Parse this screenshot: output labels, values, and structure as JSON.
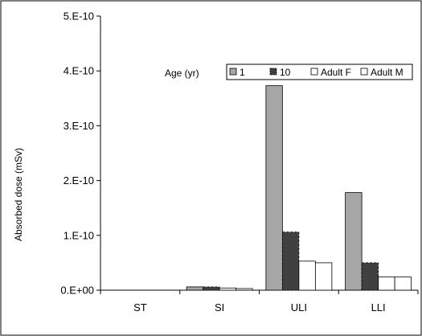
{
  "chart_data": {
    "type": "bar",
    "title": "",
    "xlabel": "",
    "ylabel": "Absorbed dose (mSv)",
    "categories": [
      "ST",
      "SI",
      "ULI",
      "LLI"
    ],
    "y_ticks": [
      "0.E+00",
      "1.E-10",
      "2.E-10",
      "3.E-10",
      "4.E-10",
      "5.E-10"
    ],
    "ylim": [
      0,
      5e-10
    ],
    "legend_title": "Age (yr)",
    "legend_position": "top-right",
    "grid": false,
    "series": [
      {
        "name": "1",
        "color": "#a6a6a6",
        "edge": "#000000",
        "dashed": false,
        "values": [
          0,
          6e-12,
          3.73e-10,
          1.78e-10
        ]
      },
      {
        "name": "10",
        "color": "#404040",
        "edge": "#000000",
        "dashed": true,
        "values": [
          0,
          6e-12,
          1.06e-10,
          5e-11
        ]
      },
      {
        "name": "Adult F",
        "color": "#ffffff",
        "edge": "#000000",
        "dashed": false,
        "values": [
          0,
          4e-12,
          5.3e-11,
          2.4e-11
        ]
      },
      {
        "name": "Adult M",
        "color": "#ffffff",
        "edge": "#000000",
        "dashed": false,
        "values": [
          0,
          3e-12,
          5e-11,
          2.4e-11
        ]
      }
    ]
  }
}
